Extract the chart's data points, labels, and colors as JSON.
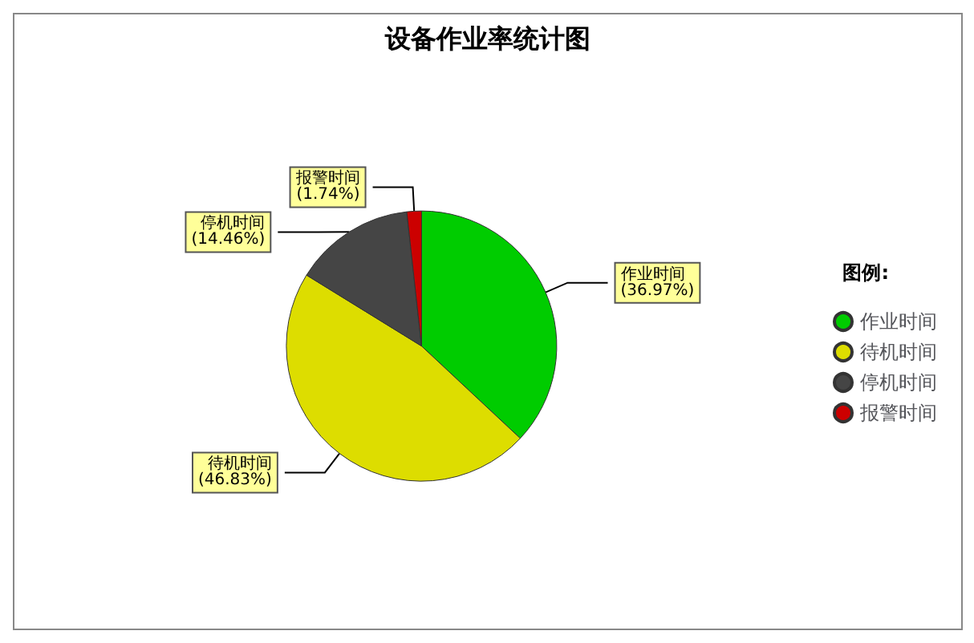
{
  "chart_data": {
    "type": "pie",
    "title": "设备作业率统计图",
    "legend_title": "图例:",
    "legend": "right",
    "categories": [
      "作业时间",
      "待机时间",
      "停机时间",
      "报警时间"
    ],
    "values": [
      36.97,
      46.83,
      14.46,
      1.74
    ],
    "value_labels": [
      "(36.97%)",
      "(46.83%)",
      "(14.46%)",
      "(1.74%)"
    ],
    "colors": [
      "#00cc00",
      "#dddd00",
      "#454545",
      "#cc0000"
    ]
  }
}
